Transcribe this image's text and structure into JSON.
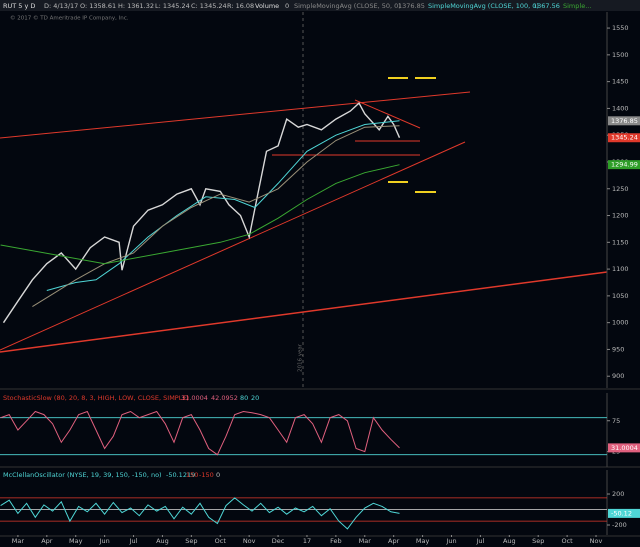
{
  "header": {
    "items": [
      "D: 4/13/17",
      "O: 1358.61",
      "H: 1361.32",
      "L: 1345.24",
      "C: 1345.24",
      "R: 16.08",
      "Volume",
      "0"
    ],
    "copyright": "© 2017 © TD Ameritrade IP Company, Inc.",
    "annotation": "2016 year"
  },
  "chart_data": [
    {
      "type": "line",
      "title": "RUT 5 y D",
      "xlim": [
        -0.62,
        20.38
      ],
      "ylim": [
        878,
        1580
      ],
      "yticks": [
        1550,
        1500,
        1450,
        1400,
        1350,
        1300,
        1250,
        1200,
        1150,
        1100,
        1050,
        1000,
        950,
        900
      ],
      "series": [
        {
          "name": "RUT 5 y D",
          "color": "#d8d8d8",
          "x": [
            -0.5,
            0,
            0.5,
            1,
            1.5,
            2,
            2.5,
            3,
            3.5,
            3.6,
            4,
            4.5,
            5,
            5.5,
            6,
            6.3,
            6.5,
            7,
            7.3,
            7.7,
            8,
            8.3,
            8.6,
            9,
            9.3,
            9.7,
            10,
            10.5,
            11,
            11.5,
            11.8,
            12,
            12.5,
            12.8,
            13,
            13.2
          ],
          "values": [
            1000,
            1040,
            1080,
            1110,
            1130,
            1100,
            1140,
            1160,
            1150,
            1098,
            1180,
            1210,
            1220,
            1240,
            1250,
            1220,
            1250,
            1245,
            1220,
            1200,
            1160,
            1240,
            1320,
            1330,
            1380,
            1365,
            1370,
            1360,
            1380,
            1395,
            1410,
            1390,
            1360,
            1385,
            1370,
            1345.24
          ],
          "label_color": "#e0392b"
        },
        {
          "name": "SimpleMovingAvg (CLOSE, 50, 0)",
          "color": "#4fd6d6",
          "x": [
            1,
            2,
            2.7,
            3.5,
            4.5,
            5.5,
            6.5,
            7.5,
            8.2,
            9,
            10,
            11,
            12,
            13.2
          ],
          "values": [
            1060,
            1075,
            1080,
            1110,
            1160,
            1200,
            1235,
            1230,
            1215,
            1260,
            1320,
            1350,
            1370,
            1376.85
          ],
          "label_color": "#8a8a8a"
        },
        {
          "name": "SimpleMovingAvg (CLOSE, 100, 0)",
          "color": "#9a9078",
          "x": [
            0.5,
            2,
            3,
            4,
            5,
            6,
            7,
            8,
            9,
            10,
            11,
            12,
            13.2
          ],
          "values": [
            1030,
            1080,
            1110,
            1130,
            1180,
            1215,
            1240,
            1225,
            1250,
            1300,
            1340,
            1365,
            1367.56
          ]
        },
        {
          "name": "Simple...",
          "color": "#3aa832",
          "x": [
            -0.6,
            3,
            5,
            7,
            8,
            9,
            10,
            11,
            12,
            13.2
          ],
          "values": [
            1145,
            1110,
            1130,
            1150,
            1165,
            1195,
            1230,
            1260,
            1280,
            1294.99
          ],
          "label_color": "#2e9e28"
        }
      ]
    },
    {
      "type": "line",
      "title": "StochasticSlow (80, 20, 8, 3, HIGH, LOW, CLOSE, SIMPLE)",
      "xlim": [
        -0.62,
        20.38
      ],
      "ylim": [
        0,
        120
      ],
      "yticks": [
        25,
        75
      ],
      "levels": [
        80,
        20
      ],
      "d_value": 42.0952,
      "series": [
        {
          "name": "StochasticSlow",
          "color": "#e0607e",
          "x": [
            -0.6,
            -0.3,
            0,
            0.3,
            0.6,
            0.9,
            1.2,
            1.5,
            1.8,
            2.1,
            2.4,
            2.7,
            3,
            3.3,
            3.6,
            3.9,
            4.2,
            4.5,
            4.8,
            5.1,
            5.4,
            5.7,
            6,
            6.3,
            6.6,
            6.9,
            7.2,
            7.5,
            7.8,
            8.1,
            8.4,
            8.7,
            9,
            9.3,
            9.6,
            9.9,
            10.2,
            10.5,
            10.8,
            11.1,
            11.4,
            11.7,
            12,
            12.3,
            12.6,
            12.9,
            13.2
          ],
          "values": [
            80,
            85,
            60,
            75,
            90,
            85,
            70,
            40,
            60,
            85,
            90,
            60,
            30,
            50,
            85,
            90,
            80,
            85,
            90,
            70,
            40,
            80,
            85,
            60,
            30,
            20,
            50,
            85,
            90,
            88,
            85,
            80,
            60,
            40,
            80,
            85,
            70,
            40,
            80,
            85,
            75,
            30,
            25,
            80,
            60,
            45,
            31.0004
          ]
        }
      ]
    },
    {
      "type": "line",
      "title": "McClellanOscillator (NYSE, 19, 39, 150, -150, no)",
      "xlim": [
        -0.62,
        20.38
      ],
      "ylim": [
        -329,
        510
      ],
      "yticks": [
        200,
        -200
      ],
      "levels": [
        150,
        -150,
        0
      ],
      "xticks": [
        {
          "value": 0,
          "label": "Mar"
        },
        {
          "value": 1,
          "label": "Apr"
        },
        {
          "value": 2,
          "label": "May"
        },
        {
          "value": 3,
          "label": "Jun"
        },
        {
          "value": 4,
          "label": "Jul"
        },
        {
          "value": 5,
          "label": "Aug"
        },
        {
          "value": 6,
          "label": "Sep"
        },
        {
          "value": 7,
          "label": "Oct"
        },
        {
          "value": 8,
          "label": "Nov"
        },
        {
          "value": 9,
          "label": "Dec"
        },
        {
          "value": 10,
          "label": "17"
        },
        {
          "value": 11,
          "label": "Feb"
        },
        {
          "value": 12,
          "label": "Mar"
        },
        {
          "value": 13,
          "label": "Apr"
        },
        {
          "value": 14,
          "label": "May"
        },
        {
          "value": 15,
          "label": "Jun"
        },
        {
          "value": 16,
          "label": "Jul"
        },
        {
          "value": 17,
          "label": "Aug"
        },
        {
          "value": 18,
          "label": "Sep"
        },
        {
          "value": 19,
          "label": "Oct"
        },
        {
          "value": 20,
          "label": "Nov"
        }
      ],
      "series": [
        {
          "name": "McClellanOscillator",
          "color": "#4fd6d6",
          "x": [
            -0.6,
            -0.3,
            0,
            0.3,
            0.6,
            0.9,
            1.2,
            1.5,
            1.8,
            2.1,
            2.4,
            2.7,
            3,
            3.3,
            3.6,
            3.9,
            4.2,
            4.5,
            4.8,
            5.1,
            5.4,
            5.7,
            6,
            6.3,
            6.6,
            6.9,
            7.2,
            7.5,
            7.8,
            8.1,
            8.4,
            8.7,
            9,
            9.3,
            9.6,
            9.9,
            10.2,
            10.5,
            10.8,
            11.1,
            11.4,
            11.7,
            12,
            12.3,
            12.6,
            12.9,
            13.2
          ],
          "values": [
            50,
            120,
            -50,
            80,
            -100,
            60,
            -20,
            100,
            -150,
            40,
            -30,
            80,
            -60,
            90,
            -40,
            20,
            -80,
            60,
            -20,
            40,
            -120,
            30,
            -60,
            80,
            -100,
            -180,
            50,
            150,
            60,
            -20,
            80,
            -40,
            30,
            -60,
            20,
            -30,
            40,
            -80,
            10,
            -150,
            -250,
            -100,
            20,
            80,
            40,
            -30,
            -50.1219
          ],
          "value_labels": [
            null,
            null,
            null,
            null,
            null,
            null,
            null,
            null,
            null,
            null,
            null,
            null,
            null,
            null,
            null,
            null,
            null,
            null,
            null,
            null,
            null,
            null,
            null,
            null,
            null,
            null,
            null,
            null,
            null,
            null,
            null,
            null,
            null,
            null,
            null,
            null,
            null,
            null,
            null,
            null,
            null,
            null,
            null,
            null,
            null,
            null,
            "-50.12"
          ]
        }
      ]
    }
  ]
}
